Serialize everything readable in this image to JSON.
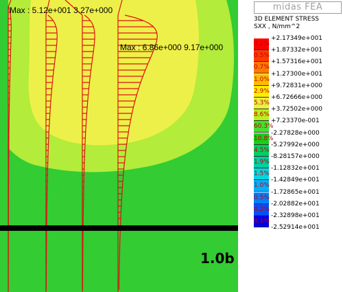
{
  "brand": "midas FEA",
  "legend": {
    "title_line1": "3D ELEMENT STRESS",
    "title_line2": "SXX , N/mm^2",
    "levels": [
      "+2.17349e+001",
      "+1.87332e+001",
      "+1.57316e+001",
      "+1.27300e+001",
      "+9.72831e+000",
      "+6.72666e+000",
      "+3.72502e+000",
      "+7.23370e-001",
      "-2.27828e+000",
      "-5.27992e+000",
      "-8.28157e+000",
      "-1.12832e+001",
      "-1.42849e+001",
      "-1.72865e+001",
      "-2.02882e+001",
      "-2.32898e+001",
      "-2.52914e+001"
    ],
    "bands": [
      {
        "percent": "0.2%",
        "color": "#ff0000"
      },
      {
        "percent": "0.5%",
        "color": "#ff3a00"
      },
      {
        "percent": "0.7%",
        "color": "#ff7a00"
      },
      {
        "percent": "1.0%",
        "color": "#ffbb00"
      },
      {
        "percent": "2.9%",
        "color": "#ffee00"
      },
      {
        "percent": "5.3%",
        "color": "#e8f040"
      },
      {
        "percent": "8.6%",
        "color": "#b8f020"
      },
      {
        "percent": "60.3%",
        "color": "#44e030"
      },
      {
        "percent": "10.8%",
        "color": "#18d018"
      },
      {
        "percent": "4.5%",
        "color": "#00d060"
      },
      {
        "percent": "1.9%",
        "color": "#00d0a0"
      },
      {
        "percent": "1.5%",
        "color": "#00d8e0"
      },
      {
        "percent": "1.0%",
        "color": "#00b0ff"
      },
      {
        "percent": "0.5%",
        "color": "#0080ff"
      },
      {
        "percent": "0.2%",
        "color": "#0050ff"
      },
      {
        "percent": "0.1%",
        "color": "#0000e8"
      }
    ]
  },
  "annotations": {
    "max_left": "Max : 5.12e+001 3.27e+000",
    "max_right": "Max : 6.86e+000 9.17e+000",
    "section": "1.0b"
  },
  "colors": {
    "background_green": "#33cc33",
    "light_green": "#b3ec3a",
    "yellow": "#eef04a",
    "section_line": "#000000",
    "diagram_red": "#dd1010"
  }
}
